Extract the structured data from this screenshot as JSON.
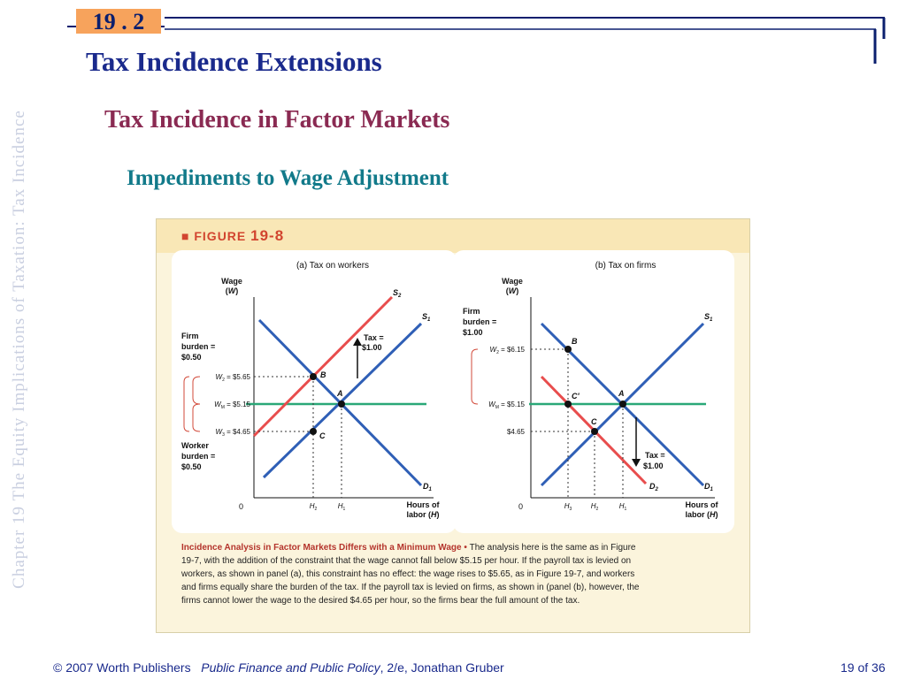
{
  "slide": {
    "number": "19 . 2",
    "title": "Tax Incidence Extensions",
    "subtitle": "Tax Incidence in Factor Markets",
    "subsubtitle": "Impediments to Wage Adjustment",
    "side_text": "Chapter 19  The Equity Implications of Taxation: Tax Incidence",
    "footer_publisher": "© 2007 Worth Publishers",
    "footer_book": "Public Finance and Public Policy",
    "footer_edition": ", 2/e, Jonathan Gruber",
    "page": "19 of 36",
    "colors": {
      "title": "#1a2a8c",
      "subtitle": "#8a2a52",
      "subsubtitle": "#127a8a",
      "slide_number_bg": "#f7a35c"
    }
  },
  "figure": {
    "label_prefix": "FIGURE ",
    "label_number": "19-8",
    "caption_title": "Incidence Analysis in Factor Markets Differs with a Minimum Wage",
    "caption_bullet": " • ",
    "caption_body": "The analysis here is the same as in Figure 19-7, with the addition of the constraint that the wage cannot fall below $5.15 per hour. If the payroll tax is levied on workers, as shown in panel (a), this constraint has no effect: the wage rises to $5.65, as in Figure 19-7, and workers and firms equally share the burden of the tax. If the payroll tax is levied on firms, as shown in (panel (b), however, the firms cannot lower the wage to the desired $4.65 per hour, so the firms bear the full amount of the tax."
  },
  "chart_data": [
    {
      "type": "line",
      "title": "(a) Tax on workers",
      "ylabel": "Wage (W)",
      "xlabel": "Hours of labor (H)",
      "origin_label": "0",
      "x_ticks": [
        "H2",
        "H1"
      ],
      "series": [
        {
          "name": "S2",
          "color": "#e84d4d",
          "points": [
            [
              0.0,
              4.5
            ],
            [
              1.0,
              6.6
            ]
          ]
        },
        {
          "name": "S1",
          "color": "#2f5fb6",
          "points": [
            [
              0.0,
              3.5
            ],
            [
              1.0,
              5.6
            ]
          ]
        },
        {
          "name": "D1",
          "color": "#2f5fb6",
          "points": [
            [
              0.0,
              6.0
            ],
            [
              1.0,
              3.8
            ]
          ]
        },
        {
          "name": "Minimum wage",
          "color": "#2aa878",
          "points": [
            [
              -0.05,
              5.15
            ],
            [
              1.0,
              5.15
            ]
          ]
        }
      ],
      "points": [
        {
          "label": "B",
          "wage": 5.65,
          "hours": "H2"
        },
        {
          "label": "A",
          "wage": 5.15,
          "hours": "H1"
        },
        {
          "label": "C",
          "wage": 4.65,
          "hours": "H2"
        }
      ],
      "wage_labels": [
        "W2 = $5.65",
        "WM = $5.15",
        "W3 = $4.65"
      ],
      "annotations": [
        "Tax = $1.00",
        "Firm burden = $0.50",
        "Worker burden = $0.50"
      ]
    },
    {
      "type": "line",
      "title": "(b) Tax on firms",
      "ylabel": "Wage (W)",
      "xlabel": "Hours of labor (H)",
      "origin_label": "0",
      "x_ticks": [
        "H3",
        "H2",
        "H1"
      ],
      "series": [
        {
          "name": "S1",
          "color": "#2f5fb6",
          "points": [
            [
              0.0,
              3.5
            ],
            [
              1.0,
              6.35
            ]
          ]
        },
        {
          "name": "D1",
          "color": "#2f5fb6",
          "points": [
            [
              0.0,
              6.4
            ],
            [
              1.0,
              3.8
            ]
          ]
        },
        {
          "name": "D2",
          "color": "#e84d4d",
          "points": [
            [
              0.0,
              5.7
            ],
            [
              1.0,
              3.9
            ]
          ]
        },
        {
          "name": "Minimum wage",
          "color": "#2aa878",
          "points": [
            [
              -0.05,
              5.15
            ],
            [
              1.0,
              5.15
            ]
          ]
        }
      ],
      "points": [
        {
          "label": "B",
          "wage": 6.15,
          "hours": "H3"
        },
        {
          "label": "C'",
          "wage": 5.15,
          "hours": "H3"
        },
        {
          "label": "A",
          "wage": 5.15,
          "hours": "H1"
        },
        {
          "label": "C",
          "wage": 4.65,
          "hours": "H2"
        }
      ],
      "wage_labels": [
        "W2 = $6.15",
        "WM = $5.15",
        "$4.65"
      ],
      "annotations": [
        "Tax = $1.00",
        "Firm burden = $1.00"
      ]
    }
  ]
}
